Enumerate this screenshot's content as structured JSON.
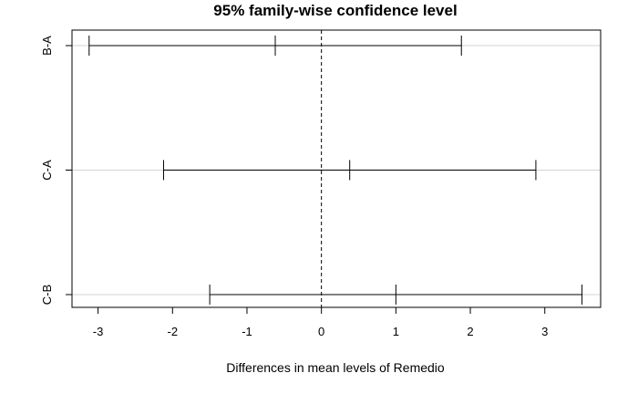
{
  "chart_data": {
    "type": "errorbar",
    "title": "95% family-wise confidence level",
    "xlabel": "Differences in mean levels of Remedio",
    "ylabel": "",
    "xlim": [
      -3.35,
      3.75
    ],
    "xticks": [
      -3,
      -2,
      -1,
      0,
      1,
      2,
      3
    ],
    "reference_line": 0,
    "grid": "horizontal lines at comparisons",
    "comparisons": [
      {
        "label": "B-A",
        "lwr": -3.12,
        "diff": -0.62,
        "upr": 1.88
      },
      {
        "label": "C-A",
        "lwr": -2.12,
        "diff": 0.38,
        "upr": 2.88
      },
      {
        "label": "C-B",
        "lwr": -1.5,
        "diff": 1.0,
        "upr": 3.5
      }
    ]
  }
}
